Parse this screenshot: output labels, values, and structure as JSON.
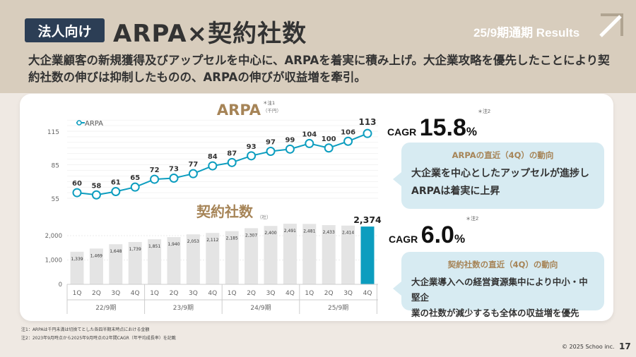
{
  "header": {
    "badge": "法人向け",
    "title": "ARPA×契約社数",
    "period": "25/9期通期 Results"
  },
  "subtitle": "大企業顧客の新規獲得及びアップセルを中心に、ARPAを着実に積み上げ。大企業攻略を優先したことにより契約社数の伸びは抑制したものの、ARPAの伸びが収益増を牽引。",
  "colors": {
    "accent": "#0c9dbf",
    "badge": "#2c3e55",
    "heading": "#a68457",
    "bar": "#e4e4e4",
    "bubble": "#d7ebf2"
  },
  "chart_data": [
    {
      "type": "line",
      "title": "ARPA",
      "title_note": "＊注1",
      "unit": "（千円）",
      "legend": "ARPA",
      "legend_position": "top-left",
      "categories": [
        "1Q",
        "2Q",
        "3Q",
        "4Q",
        "1Q",
        "2Q",
        "3Q",
        "4Q",
        "1Q",
        "2Q",
        "3Q",
        "4Q",
        "1Q",
        "2Q",
        "3Q",
        "4Q"
      ],
      "values": [
        60,
        58,
        61,
        65,
        72,
        73,
        77,
        84,
        87,
        93,
        97,
        99,
        104,
        100,
        106,
        113
      ],
      "yticks": [
        55,
        85,
        115
      ],
      "ylim": [
        52,
        125
      ],
      "grid": true
    },
    {
      "type": "bar",
      "title": "契約社数",
      "unit": "（社）",
      "categories": [
        "1Q",
        "2Q",
        "3Q",
        "4Q",
        "1Q",
        "2Q",
        "3Q",
        "4Q",
        "1Q",
        "2Q",
        "3Q",
        "4Q",
        "1Q",
        "2Q",
        "3Q",
        "4Q"
      ],
      "groups": [
        "22/9期",
        "23/9期",
        "24/9期",
        "25/9期"
      ],
      "values": [
        1339,
        1469,
        1648,
        1739,
        1851,
        1940,
        2053,
        2112,
        2185,
        2307,
        2400,
        2491,
        2481,
        2433,
        2414,
        2374
      ],
      "value_labels": [
        "1,339",
        "1,469",
        "1,648",
        "1,739",
        "1,851",
        "1,940",
        "2,053",
        "2,112",
        "2,185",
        "2,307",
        "2,400",
        "2,491",
        "2,481",
        "2,433",
        "2,414",
        "2,374"
      ],
      "yticks": [
        "0",
        "1,000",
        "2,000"
      ],
      "ylim": [
        0,
        2500
      ],
      "highlight_last": true
    }
  ],
  "arpa_summary": {
    "label": "CAGR",
    "value": "15.8",
    "unit": "%",
    "note": "＊注2",
    "heading": "ARPAの直近（4Q）の動向",
    "body_line1": "大企業を中心としたアップセルが進捗し",
    "body_line2": "ARPAは着実に上昇"
  },
  "count_summary": {
    "label": "CAGR",
    "value": "6.0",
    "unit": "%",
    "note": "＊注2",
    "heading": "契約社数の直近（4Q）の動向",
    "body_line1": "大企業導入への経営資源集中により中小・中堅企",
    "body_line2": "業の社数が減少するも全体の収益増を優先"
  },
  "footnotes": [
    "注1：ARPAは千円未満は切捨てとした各四半期末時点における金額",
    "注2：2023年9月時点から2025年9月時点の2年間CAGR（年平均成長率）を記載"
  ],
  "footer": {
    "copyright": "© 2025 Schoo inc.",
    "page": "17"
  }
}
